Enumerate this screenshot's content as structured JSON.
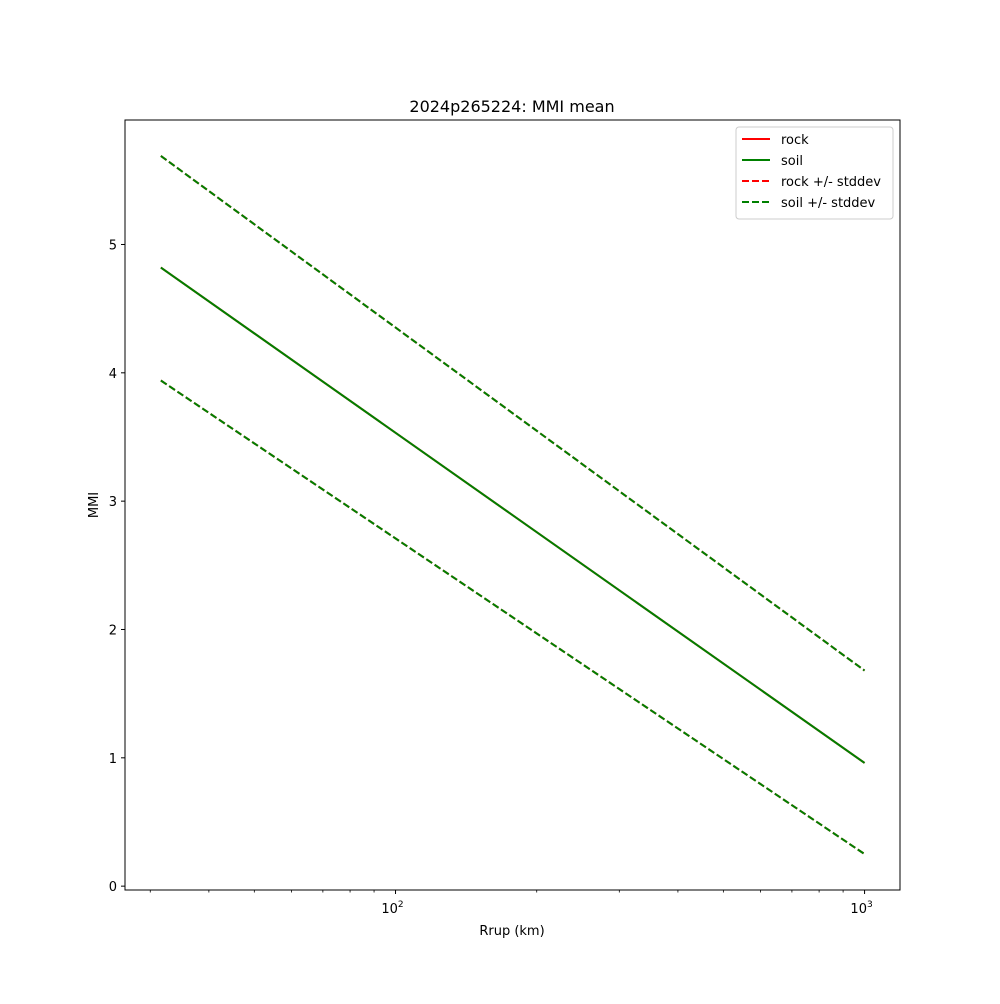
{
  "chart_data": {
    "type": "line",
    "title": "2024p265224: MMI mean",
    "xlabel": "Rrup (km)",
    "ylabel": "MMI",
    "xscale": "log",
    "xlim": [
      26.5,
      1190
    ],
    "ylim": [
      -0.03,
      5.97
    ],
    "grid": false,
    "legend_position": "top-right",
    "x_ticks": [
      {
        "value": 100,
        "base": "10",
        "exp": "2"
      },
      {
        "value": 1000,
        "base": "10",
        "exp": "3"
      }
    ],
    "y_ticks": [
      0,
      1,
      2,
      3,
      4,
      5
    ],
    "series": [
      {
        "name": "rock",
        "color": "#ff0000",
        "dashed": false,
        "x": [
          31.6,
          1000
        ],
        "y": [
          4.82,
          0.96
        ]
      },
      {
        "name": "soil",
        "color": "#008000",
        "dashed": false,
        "x": [
          31.6,
          1000
        ],
        "y": [
          4.82,
          0.96
        ]
      },
      {
        "name": "rock +/- stddev",
        "color": "#ff0000",
        "dashed": true,
        "x": [
          31.6,
          1000
        ],
        "y": [
          5.69,
          1.68
        ],
        "y_lower": [
          3.94,
          0.25
        ]
      },
      {
        "name": "soil +/- stddev",
        "color": "#008000",
        "dashed": true,
        "x": [
          31.6,
          1000
        ],
        "y": [
          5.69,
          1.68
        ],
        "y_lower": [
          3.94,
          0.25
        ]
      }
    ],
    "draw_order": [
      "rock",
      "rock +/- stddev",
      "soil",
      "soil +/- stddev"
    ]
  }
}
